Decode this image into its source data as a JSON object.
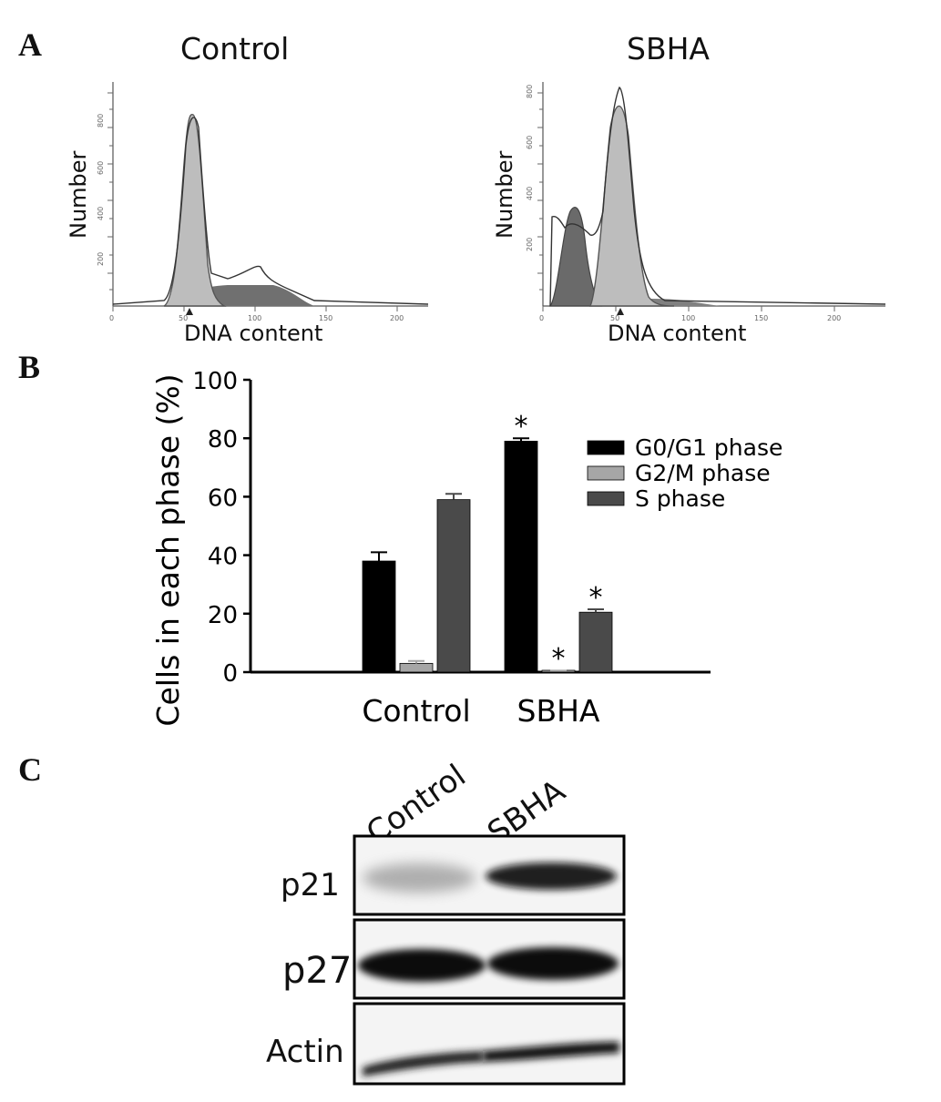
{
  "panels": {
    "a": {
      "letter": "A",
      "histograms": [
        {
          "title": "Control",
          "ylabel": "Number",
          "xlabel": "DNA content",
          "xticks": [
            "0",
            "50",
            "100",
            "150",
            "200"
          ],
          "yticks": [
            "200",
            "400",
            "600",
            "800"
          ]
        },
        {
          "title": "SBHA",
          "ylabel": "Number",
          "xlabel": "DNA content",
          "xticks": [
            "0",
            "50",
            "100",
            "150",
            "200"
          ],
          "yticks": [
            "200",
            "400",
            "600",
            "800"
          ]
        }
      ]
    },
    "b": {
      "letter": "B"
    },
    "c": {
      "letter": "C",
      "lanes": [
        "Control",
        "SBHA"
      ],
      "rows": [
        {
          "label": "p21",
          "band_intensity": [
            0.35,
            0.9
          ]
        },
        {
          "label": "p27",
          "band_intensity": [
            0.95,
            0.95
          ]
        },
        {
          "label": "Actin",
          "band_intensity": [
            0.8,
            0.85
          ]
        }
      ]
    }
  },
  "chart_data": {
    "type": "bar",
    "ylabel": "Cells in each phase (%)",
    "categories": [
      "Control",
      "SBHA"
    ],
    "ylim": [
      0,
      100
    ],
    "yticks": [
      0,
      20,
      40,
      60,
      80,
      100
    ],
    "series": [
      {
        "name": "G0/G1 phase",
        "color": "#000000",
        "values": [
          38,
          79
        ],
        "errors": [
          3,
          1
        ],
        "significant": [
          false,
          true
        ]
      },
      {
        "name": "G2/M phase",
        "color": "#a6a6a6",
        "values": [
          3,
          0.3
        ],
        "errors": [
          0.8,
          0.2
        ],
        "significant": [
          false,
          true
        ]
      },
      {
        "name": "S phase",
        "color": "#4a4a4a",
        "values": [
          59,
          20.5
        ],
        "errors": [
          2,
          1
        ],
        "significant": [
          false,
          true
        ]
      }
    ],
    "significance_marker": "*",
    "legend_position": "right"
  }
}
